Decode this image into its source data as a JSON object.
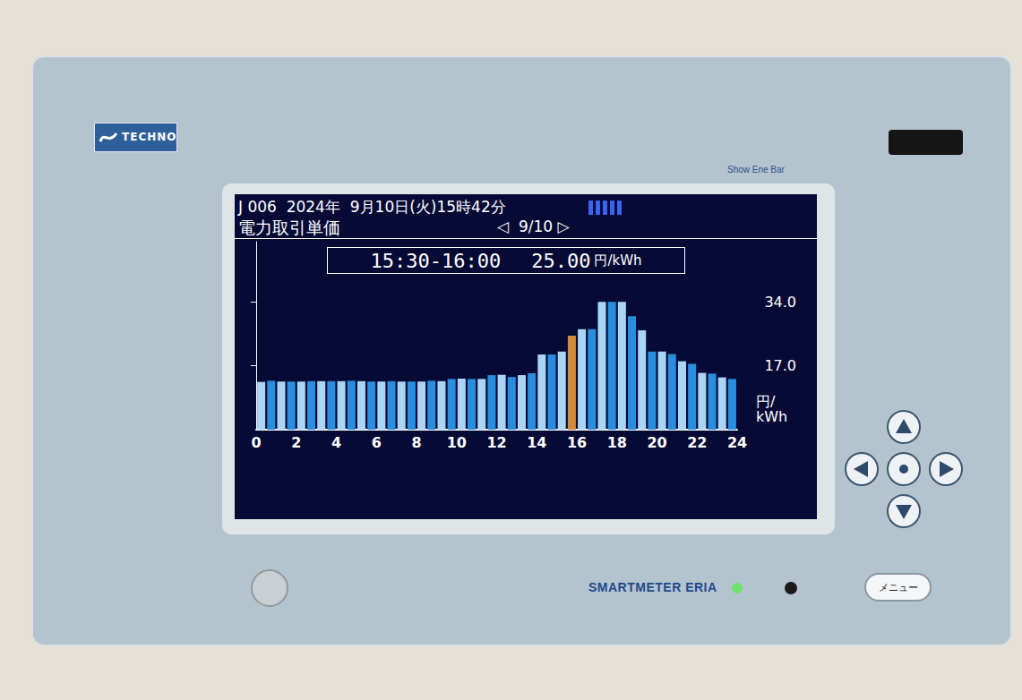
{
  "device": {
    "brand": "TECHNO",
    "button_caption": "Show Ene Bar",
    "model": "SMARTMETER ERIA",
    "menu_button": "メニュー"
  },
  "screen": {
    "status_line": "J 006  2024年  9月10日(火)15時42分",
    "screen_title": "電力取引単価",
    "date_nav": "◁  9/10 ▷"
  },
  "chart_data": {
    "type": "bar",
    "annotation": {
      "period": "15:30-16:00",
      "price": "25.00",
      "unit": "円/kWh"
    },
    "y_label": "円/kWh",
    "x": [
      0.25,
      0.75,
      1.25,
      1.75,
      2.25,
      2.75,
      3.25,
      3.75,
      4.25,
      4.75,
      5.25,
      5.75,
      6.25,
      6.75,
      7.25,
      7.75,
      8.25,
      8.75,
      9.25,
      9.75,
      10.25,
      10.75,
      11.25,
      11.75,
      12.25,
      12.75,
      13.25,
      13.75,
      14.25,
      14.75,
      15.25,
      15.75,
      16.25,
      16.75,
      17.25,
      17.75,
      18.25,
      18.75,
      19.25,
      19.75,
      20.25,
      20.75,
      21.25,
      21.75,
      22.25,
      22.75,
      23.25,
      23.75
    ],
    "values": [
      12.7,
      13.0,
      12.8,
      12.8,
      12.8,
      12.9,
      12.9,
      12.9,
      12.9,
      13.0,
      12.9,
      12.8,
      12.8,
      12.9,
      12.8,
      12.8,
      12.8,
      13.0,
      12.9,
      13.5,
      13.6,
      13.5,
      13.5,
      14.5,
      14.6,
      14.0,
      14.5,
      15.0,
      20.0,
      20.0,
      20.8,
      25.0,
      26.7,
      26.7,
      34.0,
      34.0,
      34.0,
      30.2,
      26.4,
      20.8,
      20.8,
      20.1,
      18.2,
      17.5,
      15.1,
      14.9,
      13.9,
      13.5
    ],
    "colors": [
      "#a9d6f5",
      "#2a8ee0",
      "#a9d6f5",
      "#2a8ee0",
      "#a9d6f5",
      "#2a8ee0",
      "#a9d6f5",
      "#2a8ee0",
      "#a9d6f5",
      "#2a8ee0",
      "#a9d6f5",
      "#2a8ee0",
      "#a9d6f5",
      "#2a8ee0",
      "#a9d6f5",
      "#2a8ee0",
      "#a9d6f5",
      "#2a8ee0",
      "#a9d6f5",
      "#2a8ee0",
      "#a9d6f5",
      "#2a8ee0",
      "#a9d6f5",
      "#2a8ee0",
      "#a9d6f5",
      "#2a8ee0",
      "#a9d6f5",
      "#2a8ee0",
      "#a9d6f5",
      "#2a8ee0",
      "#a9d6f5",
      "#d08a3c",
      "#a9d6f5",
      "#2a8ee0",
      "#a9d6f5",
      "#2a8ee0",
      "#a9d6f5",
      "#2a8ee0",
      "#a9d6f5",
      "#2a8ee0",
      "#a9d6f5",
      "#2a8ee0",
      "#a9d6f5",
      "#2a8ee0",
      "#a9d6f5",
      "#2a8ee0",
      "#a9d6f5",
      "#2a8ee0"
    ],
    "xlim": [
      0,
      24
    ],
    "xticks": [
      0,
      2,
      4,
      6,
      8,
      10,
      12,
      14,
      16,
      18,
      20,
      22,
      24
    ],
    "ylim": [
      0,
      50
    ],
    "yticks": [
      {
        "value": 17,
        "label": "17.0"
      },
      {
        "value": 34,
        "label": "34.0"
      }
    ],
    "grid": false
  }
}
